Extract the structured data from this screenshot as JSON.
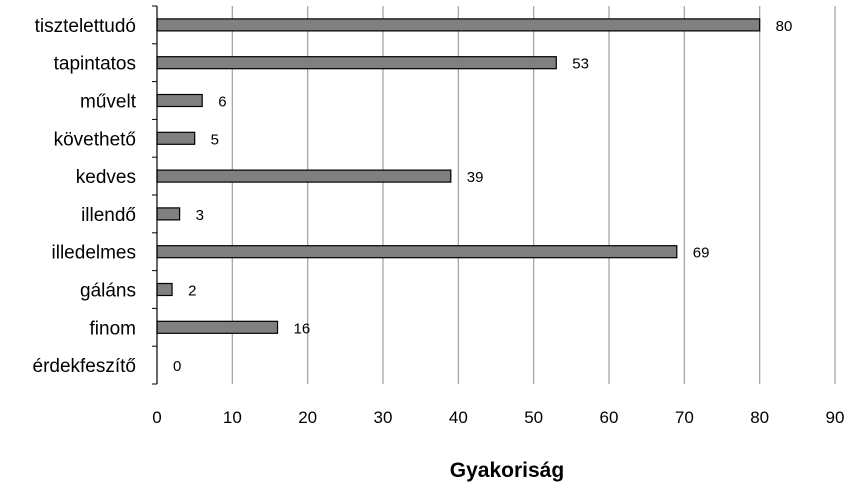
{
  "chart_data": {
    "type": "bar",
    "orientation": "horizontal",
    "categories": [
      "tisztelettudó",
      "tapintatos",
      "művelt",
      "követhető",
      "kedves",
      "illendő",
      "illedelmes",
      "gáláns",
      "finom",
      "érdekfeszítő"
    ],
    "values": [
      80,
      53,
      6,
      5,
      39,
      3,
      69,
      2,
      16,
      0
    ],
    "xlabel": "Gyakoriság",
    "ylabel": "",
    "xlim": [
      0,
      90
    ],
    "xticks": [
      0,
      10,
      20,
      30,
      40,
      50,
      60,
      70,
      80,
      90
    ],
    "grid": "vertical",
    "legend": "none",
    "bar_color": "#808080",
    "bar_edge_color": "#000000",
    "grid_color": "#a6a6a6"
  }
}
